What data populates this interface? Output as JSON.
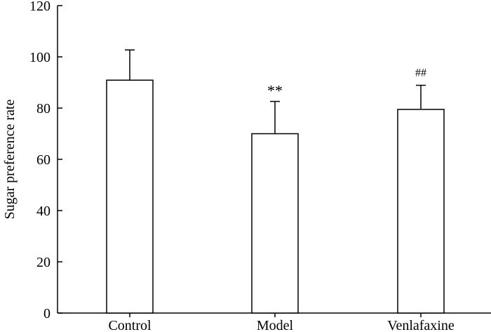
{
  "chart_data": {
    "type": "bar",
    "title": "",
    "xlabel": "",
    "ylabel": "Sugar preference rate",
    "ylim": [
      0,
      120
    ],
    "yticks": [
      0,
      20,
      40,
      60,
      80,
      100,
      120
    ],
    "categories": [
      "Control",
      "Model",
      "Venlafaxine"
    ],
    "values": [
      90.9,
      70.0,
      79.5
    ],
    "error_upper": [
      11.8,
      12.6,
      9.4
    ],
    "annotations": [
      "",
      "**",
      "##"
    ],
    "bar_fill": "#ffffff",
    "bar_stroke": "#000000",
    "grid": false
  }
}
